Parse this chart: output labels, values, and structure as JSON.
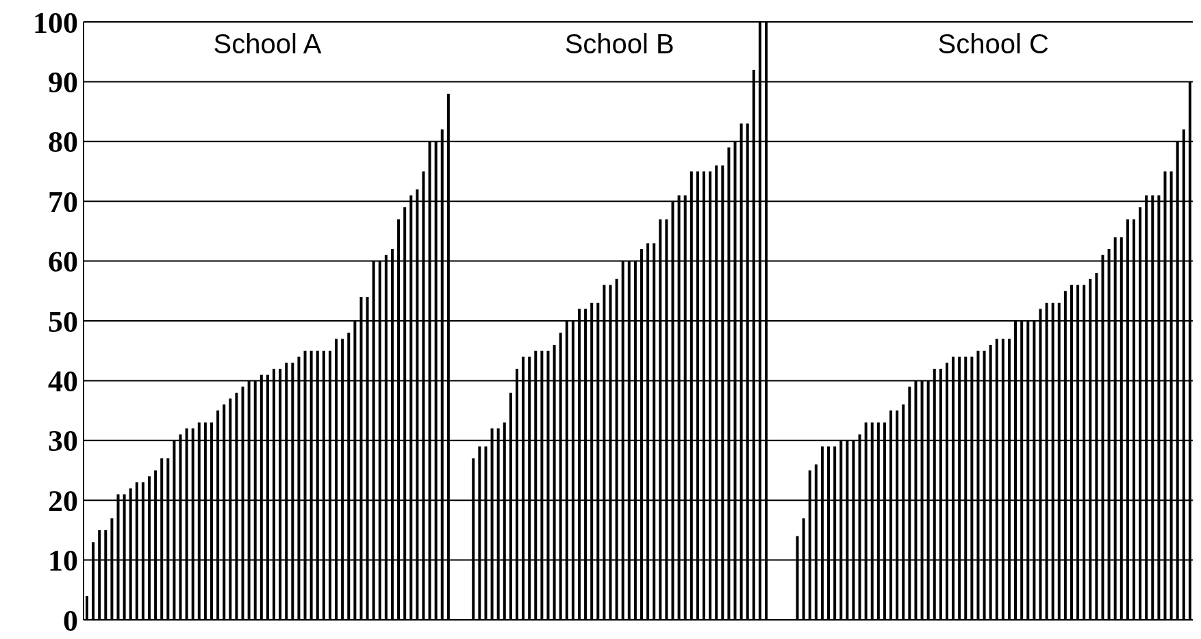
{
  "chart_data": {
    "type": "bar",
    "categories": [
      null,
      null,
      null,
      null,
      null,
      null,
      null,
      null,
      null,
      null,
      null,
      null,
      null,
      null,
      null,
      null,
      null,
      null,
      null,
      null,
      null,
      null,
      null,
      null,
      null,
      null,
      null,
      null,
      null,
      null,
      null,
      null,
      null,
      null,
      null,
      null,
      null,
      null,
      null,
      null,
      null,
      null,
      null,
      null,
      null,
      null,
      null,
      null,
      null,
      null,
      null,
      null,
      null,
      null,
      null,
      null,
      null,
      null,
      null,
      null,
      null,
      null,
      null,
      null,
      null,
      null,
      null,
      null,
      null,
      null,
      null,
      null,
      null,
      null,
      null,
      null,
      null,
      null,
      null,
      null,
      null,
      null,
      null,
      null,
      null,
      null,
      null,
      null,
      null,
      null,
      null,
      null,
      null,
      null,
      null,
      null,
      null,
      null,
      null,
      null,
      null,
      null,
      null,
      null,
      null,
      null,
      null,
      null,
      null,
      null,
      null,
      null,
      null,
      null,
      null,
      null,
      null,
      null,
      null,
      null,
      null,
      null,
      null,
      null,
      null,
      null,
      null,
      null,
      null,
      null,
      null,
      null,
      null,
      null,
      null,
      null,
      null,
      null,
      null,
      null,
      null,
      null,
      null,
      null,
      null,
      null,
      null,
      null,
      null,
      null,
      null,
      null,
      null,
      null,
      null,
      null,
      null,
      null,
      null,
      null,
      null,
      null,
      null,
      null,
      null,
      null,
      null,
      null,
      null,
      null,
      null,
      null,
      null,
      null,
      null,
      null,
      null,
      null
    ],
    "values": [
      4,
      13,
      15,
      15,
      17,
      21,
      21,
      22,
      23,
      23,
      24,
      25,
      27,
      27,
      30,
      31,
      32,
      32,
      33,
      33,
      33,
      35,
      36,
      37,
      38,
      39,
      40,
      40,
      41,
      41,
      42,
      42,
      43,
      43,
      44,
      45,
      45,
      45,
      45,
      45,
      47,
      47,
      48,
      50,
      54,
      54,
      60,
      60,
      61,
      62,
      67,
      69,
      71,
      72,
      75,
      80,
      80,
      82,
      88,
      null,
      null,
      null,
      27,
      29,
      29,
      32,
      32,
      33,
      38,
      42,
      44,
      44,
      45,
      45,
      45,
      46,
      48,
      50,
      50,
      52,
      52,
      53,
      53,
      56,
      56,
      57,
      60,
      60,
      60,
      62,
      63,
      63,
      67,
      67,
      70,
      71,
      71,
      75,
      75,
      75,
      75,
      76,
      76,
      79,
      80,
      83,
      83,
      92,
      100,
      100,
      null,
      null,
      null,
      null,
      14,
      17,
      25,
      26,
      29,
      29,
      29,
      30,
      30,
      30,
      31,
      33,
      33,
      33,
      33,
      35,
      35,
      36,
      39,
      40,
      40,
      40,
      42,
      42,
      43,
      44,
      44,
      44,
      44,
      45,
      45,
      46,
      47,
      47,
      47,
      50,
      50,
      50,
      50,
      52,
      53,
      53,
      53,
      55,
      56,
      56,
      56,
      57,
      58,
      61,
      62,
      64,
      64,
      67,
      67,
      69,
      71,
      71,
      71,
      75,
      75,
      80,
      82,
      90
    ],
    "color": "#000000",
    "ylim": [
      0,
      100
    ],
    "yticks": [
      0,
      10,
      20,
      30,
      40,
      50,
      60,
      70,
      80,
      90,
      100
    ],
    "grid": "y",
    "tick_labels": "y",
    "annotations": [
      "School A",
      "School B",
      "School C"
    ]
  }
}
